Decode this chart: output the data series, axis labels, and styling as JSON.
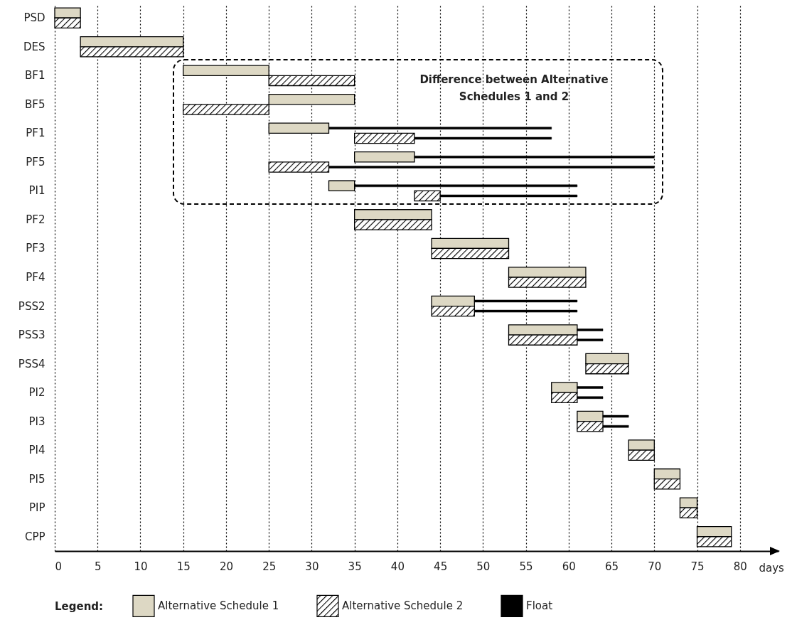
{
  "chart_data": {
    "type": "bar",
    "orientation": "horizontal",
    "xlabel": "days",
    "legend_title": "Legend:",
    "legend": "bottom",
    "grid": "x",
    "categories": [
      "PSD",
      "DES",
      "BF1",
      "BF5",
      "PF1",
      "PF5",
      "PI1",
      "PF2",
      "PF3",
      "PF4",
      "PSS2",
      "PSS3",
      "PSS4",
      "PI2",
      "PI3",
      "PI4",
      "PI5",
      "PIP",
      "CPP"
    ],
    "xlim": [
      0,
      84.5
    ],
    "xticks": [
      0,
      5,
      10,
      15,
      20,
      25,
      30,
      35,
      40,
      45,
      50,
      55,
      60,
      65,
      70,
      75,
      80
    ],
    "annotations": [
      "Difference between Alternative Schedules 1 and 2"
    ],
    "series": [
      {
        "name": "Alternative Schedule 1",
        "color": "#ddd8c4",
        "base": [
          0,
          3,
          15,
          25,
          25,
          35,
          32,
          35,
          44,
          53,
          44,
          53,
          62,
          58,
          61,
          67,
          70,
          73,
          75
        ],
        "values": [
          3,
          12,
          10,
          10,
          7,
          7,
          3,
          9,
          9,
          9,
          5,
          8,
          5,
          3,
          3,
          3,
          3,
          2,
          4
        ]
      },
      {
        "name": "Alternative Schedule 2",
        "color": "#000000",
        "base": [
          0,
          3,
          25,
          15,
          35,
          25,
          42,
          35,
          44,
          53,
          44,
          53,
          62,
          58,
          61,
          67,
          70,
          73,
          75
        ],
        "values": [
          3,
          12,
          10,
          10,
          7,
          7,
          3,
          9,
          9,
          9,
          5,
          8,
          5,
          3,
          3,
          3,
          3,
          2,
          4
        ]
      },
      {
        "name": "Float",
        "line_style": "solid",
        "color": "#000000",
        "base": [
          null,
          null,
          null,
          null,
          32,
          42,
          35,
          null,
          null,
          null,
          49,
          61,
          null,
          61,
          64,
          null,
          null,
          null,
          null
        ],
        "values": [
          null,
          null,
          null,
          null,
          26,
          28,
          26,
          null,
          null,
          null,
          12,
          3,
          null,
          3,
          3,
          null,
          null,
          null,
          null
        ]
      },
      {
        "line_style": "solid",
        "color": "#000000",
        "base": [
          null,
          null,
          null,
          null,
          42,
          32,
          45,
          null,
          null,
          null,
          49,
          61,
          null,
          61,
          64,
          null,
          null,
          null,
          null
        ],
        "values": [
          null,
          null,
          null,
          null,
          16,
          38,
          16,
          null,
          null,
          null,
          12,
          3,
          null,
          3,
          3,
          null,
          null,
          null,
          null
        ]
      }
    ]
  }
}
